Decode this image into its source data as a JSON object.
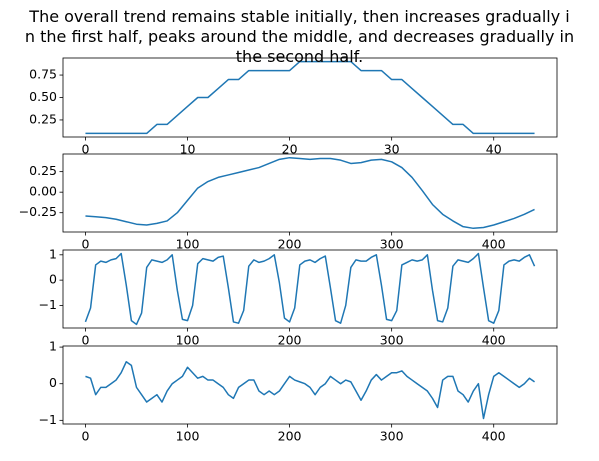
{
  "chart_data": [
    {
      "type": "line",
      "title": "The overall trend remains stable initially, then increases gradually i\nn the first half, peaks around the middle, and decreases gradually in\nthe second half.",
      "x": [
        0,
        1,
        2,
        3,
        4,
        5,
        6,
        7,
        8,
        9,
        10,
        11,
        12,
        13,
        14,
        15,
        16,
        17,
        18,
        19,
        20,
        21,
        22,
        23,
        24,
        25,
        26,
        27,
        28,
        29,
        30,
        31,
        32,
        33,
        34,
        35,
        36,
        37,
        38,
        39,
        40,
        41,
        42,
        43,
        44
      ],
      "values": [
        0.1,
        0.1,
        0.1,
        0.1,
        0.1,
        0.1,
        0.1,
        0.2,
        0.2,
        0.3,
        0.4,
        0.5,
        0.5,
        0.6,
        0.7,
        0.7,
        0.8,
        0.8,
        0.8,
        0.8,
        0.8,
        0.9,
        0.9,
        0.9,
        0.9,
        0.9,
        0.9,
        0.8,
        0.8,
        0.8,
        0.7,
        0.7,
        0.6,
        0.5,
        0.4,
        0.3,
        0.2,
        0.2,
        0.1,
        0.1,
        0.1,
        0.1,
        0.1,
        0.1,
        0.1
      ],
      "color": "#1f77b4",
      "xlim": [
        -2.2,
        46.2
      ],
      "ylim": [
        0.06,
        0.94
      ],
      "xticks": [
        0,
        10,
        20,
        30,
        40
      ],
      "yticks": [
        {
          "value": 0.25,
          "label": "0.25"
        },
        {
          "value": 0.5,
          "label": "0.50"
        },
        {
          "value": 0.75,
          "label": "0.75"
        }
      ]
    },
    {
      "type": "line",
      "x": [
        0,
        10,
        20,
        30,
        40,
        50,
        60,
        70,
        80,
        90,
        100,
        110,
        120,
        130,
        140,
        150,
        160,
        170,
        180,
        190,
        200,
        210,
        220,
        230,
        240,
        250,
        260,
        270,
        280,
        290,
        300,
        310,
        320,
        330,
        340,
        350,
        360,
        370,
        380,
        390,
        400,
        410,
        420,
        430,
        440
      ],
      "values": [
        -0.29,
        -0.3,
        -0.31,
        -0.33,
        -0.36,
        -0.39,
        -0.4,
        -0.38,
        -0.35,
        -0.25,
        -0.1,
        0.05,
        0.13,
        0.18,
        0.21,
        0.24,
        0.27,
        0.3,
        0.35,
        0.4,
        0.42,
        0.41,
        0.4,
        0.41,
        0.41,
        0.39,
        0.35,
        0.36,
        0.39,
        0.4,
        0.37,
        0.3,
        0.18,
        0.02,
        -0.15,
        -0.27,
        -0.35,
        -0.42,
        -0.44,
        -0.43,
        -0.4,
        -0.36,
        -0.32,
        -0.27,
        -0.21
      ],
      "color": "#1f77b4",
      "xlim": [
        -22,
        462
      ],
      "ylim": [
        -0.485,
        0.465
      ],
      "xticks": [
        0,
        100,
        200,
        300,
        400
      ],
      "yticks": [
        {
          "value": -0.25,
          "label": "−0.25"
        },
        {
          "value": 0,
          "label": "0.00"
        },
        {
          "value": 0.25,
          "label": "0.25"
        }
      ]
    },
    {
      "type": "line",
      "x": [
        0,
        5,
        10,
        15,
        20,
        25,
        30,
        35,
        40,
        45,
        50,
        55,
        60,
        65,
        70,
        75,
        80,
        85,
        90,
        95,
        100,
        105,
        110,
        115,
        120,
        125,
        130,
        135,
        140,
        145,
        150,
        155,
        160,
        165,
        170,
        175,
        180,
        185,
        190,
        195,
        200,
        205,
        210,
        215,
        220,
        225,
        230,
        235,
        240,
        245,
        250,
        255,
        260,
        265,
        270,
        275,
        280,
        285,
        290,
        295,
        300,
        305,
        310,
        315,
        320,
        325,
        330,
        335,
        340,
        345,
        350,
        355,
        360,
        365,
        370,
        375,
        380,
        385,
        390,
        395,
        400,
        405,
        410,
        415,
        420,
        425,
        430,
        435,
        440
      ],
      "values": [
        -1.65,
        -1.1,
        0.6,
        0.75,
        0.7,
        0.8,
        0.85,
        1.05,
        -0.2,
        -1.6,
        -1.75,
        -1.3,
        0.5,
        0.8,
        0.75,
        0.7,
        0.8,
        1.0,
        -0.4,
        -1.55,
        -1.6,
        -1.0,
        0.65,
        0.85,
        0.8,
        0.75,
        0.9,
        0.95,
        -0.3,
        -1.65,
        -1.7,
        -1.2,
        0.55,
        0.8,
        0.7,
        0.75,
        0.85,
        1.0,
        -0.1,
        -1.5,
        -1.65,
        -1.1,
        0.6,
        0.75,
        0.8,
        0.7,
        0.85,
        0.95,
        -0.3,
        -1.6,
        -1.7,
        -1.0,
        0.5,
        0.8,
        0.75,
        0.75,
        0.9,
        1.0,
        -0.2,
        -1.55,
        -1.6,
        -1.2,
        0.6,
        0.7,
        0.8,
        0.75,
        0.8,
        1.0,
        -0.4,
        -1.6,
        -1.65,
        -1.1,
        0.55,
        0.8,
        0.75,
        0.7,
        0.85,
        1.05,
        -0.3,
        -1.6,
        -1.7,
        -1.2,
        0.6,
        0.75,
        0.8,
        0.75,
        0.9,
        1.0,
        0.55
      ],
      "color": "#1f77b4",
      "xlim": [
        -22,
        462
      ],
      "ylim": [
        -1.89,
        1.19
      ],
      "xticks": [
        0,
        100,
        200,
        300,
        400
      ],
      "yticks": [
        {
          "value": -1,
          "label": "−1"
        },
        0,
        1
      ]
    },
    {
      "type": "line",
      "x": [
        0,
        5,
        10,
        15,
        20,
        25,
        30,
        35,
        40,
        45,
        50,
        55,
        60,
        65,
        70,
        75,
        80,
        85,
        90,
        95,
        100,
        105,
        110,
        115,
        120,
        125,
        130,
        135,
        140,
        145,
        150,
        155,
        160,
        165,
        170,
        175,
        180,
        185,
        190,
        195,
        200,
        205,
        210,
        215,
        220,
        225,
        230,
        235,
        240,
        245,
        250,
        255,
        260,
        265,
        270,
        275,
        280,
        285,
        290,
        295,
        300,
        305,
        310,
        315,
        320,
        325,
        330,
        335,
        340,
        345,
        350,
        355,
        360,
        365,
        370,
        375,
        380,
        385,
        390,
        395,
        400,
        405,
        410,
        415,
        420,
        425,
        430,
        435,
        440
      ],
      "values": [
        0.2,
        0.15,
        -0.3,
        -0.1,
        -0.1,
        0.0,
        0.1,
        0.3,
        0.6,
        0.5,
        -0.1,
        -0.3,
        -0.5,
        -0.4,
        -0.3,
        -0.5,
        -0.2,
        0.0,
        0.1,
        0.2,
        0.45,
        0.3,
        0.15,
        0.2,
        0.1,
        0.1,
        0.0,
        -0.1,
        -0.3,
        -0.4,
        -0.1,
        0.0,
        0.1,
        0.1,
        -0.2,
        -0.3,
        -0.2,
        -0.3,
        -0.2,
        0.0,
        0.2,
        0.1,
        0.05,
        0.0,
        -0.1,
        -0.3,
        -0.1,
        0.0,
        0.2,
        0.1,
        0.0,
        0.1,
        0.05,
        -0.2,
        -0.45,
        -0.2,
        0.1,
        0.25,
        0.1,
        0.2,
        0.3,
        0.3,
        0.35,
        0.2,
        0.1,
        0.0,
        -0.1,
        -0.2,
        -0.4,
        -0.65,
        0.1,
        0.2,
        0.2,
        -0.2,
        -0.3,
        -0.5,
        -0.2,
        0.0,
        -0.95,
        -0.3,
        0.2,
        0.3,
        0.2,
        0.1,
        0.0,
        -0.1,
        0.0,
        0.15,
        0.05
      ],
      "color": "#1f77b4",
      "xlim": [
        -22,
        462
      ],
      "ylim": [
        -1.1,
        1.03
      ],
      "xticks": [
        0,
        100,
        200,
        300,
        400
      ],
      "yticks": [
        {
          "value": -1,
          "label": "−1"
        },
        0,
        1
      ]
    }
  ]
}
